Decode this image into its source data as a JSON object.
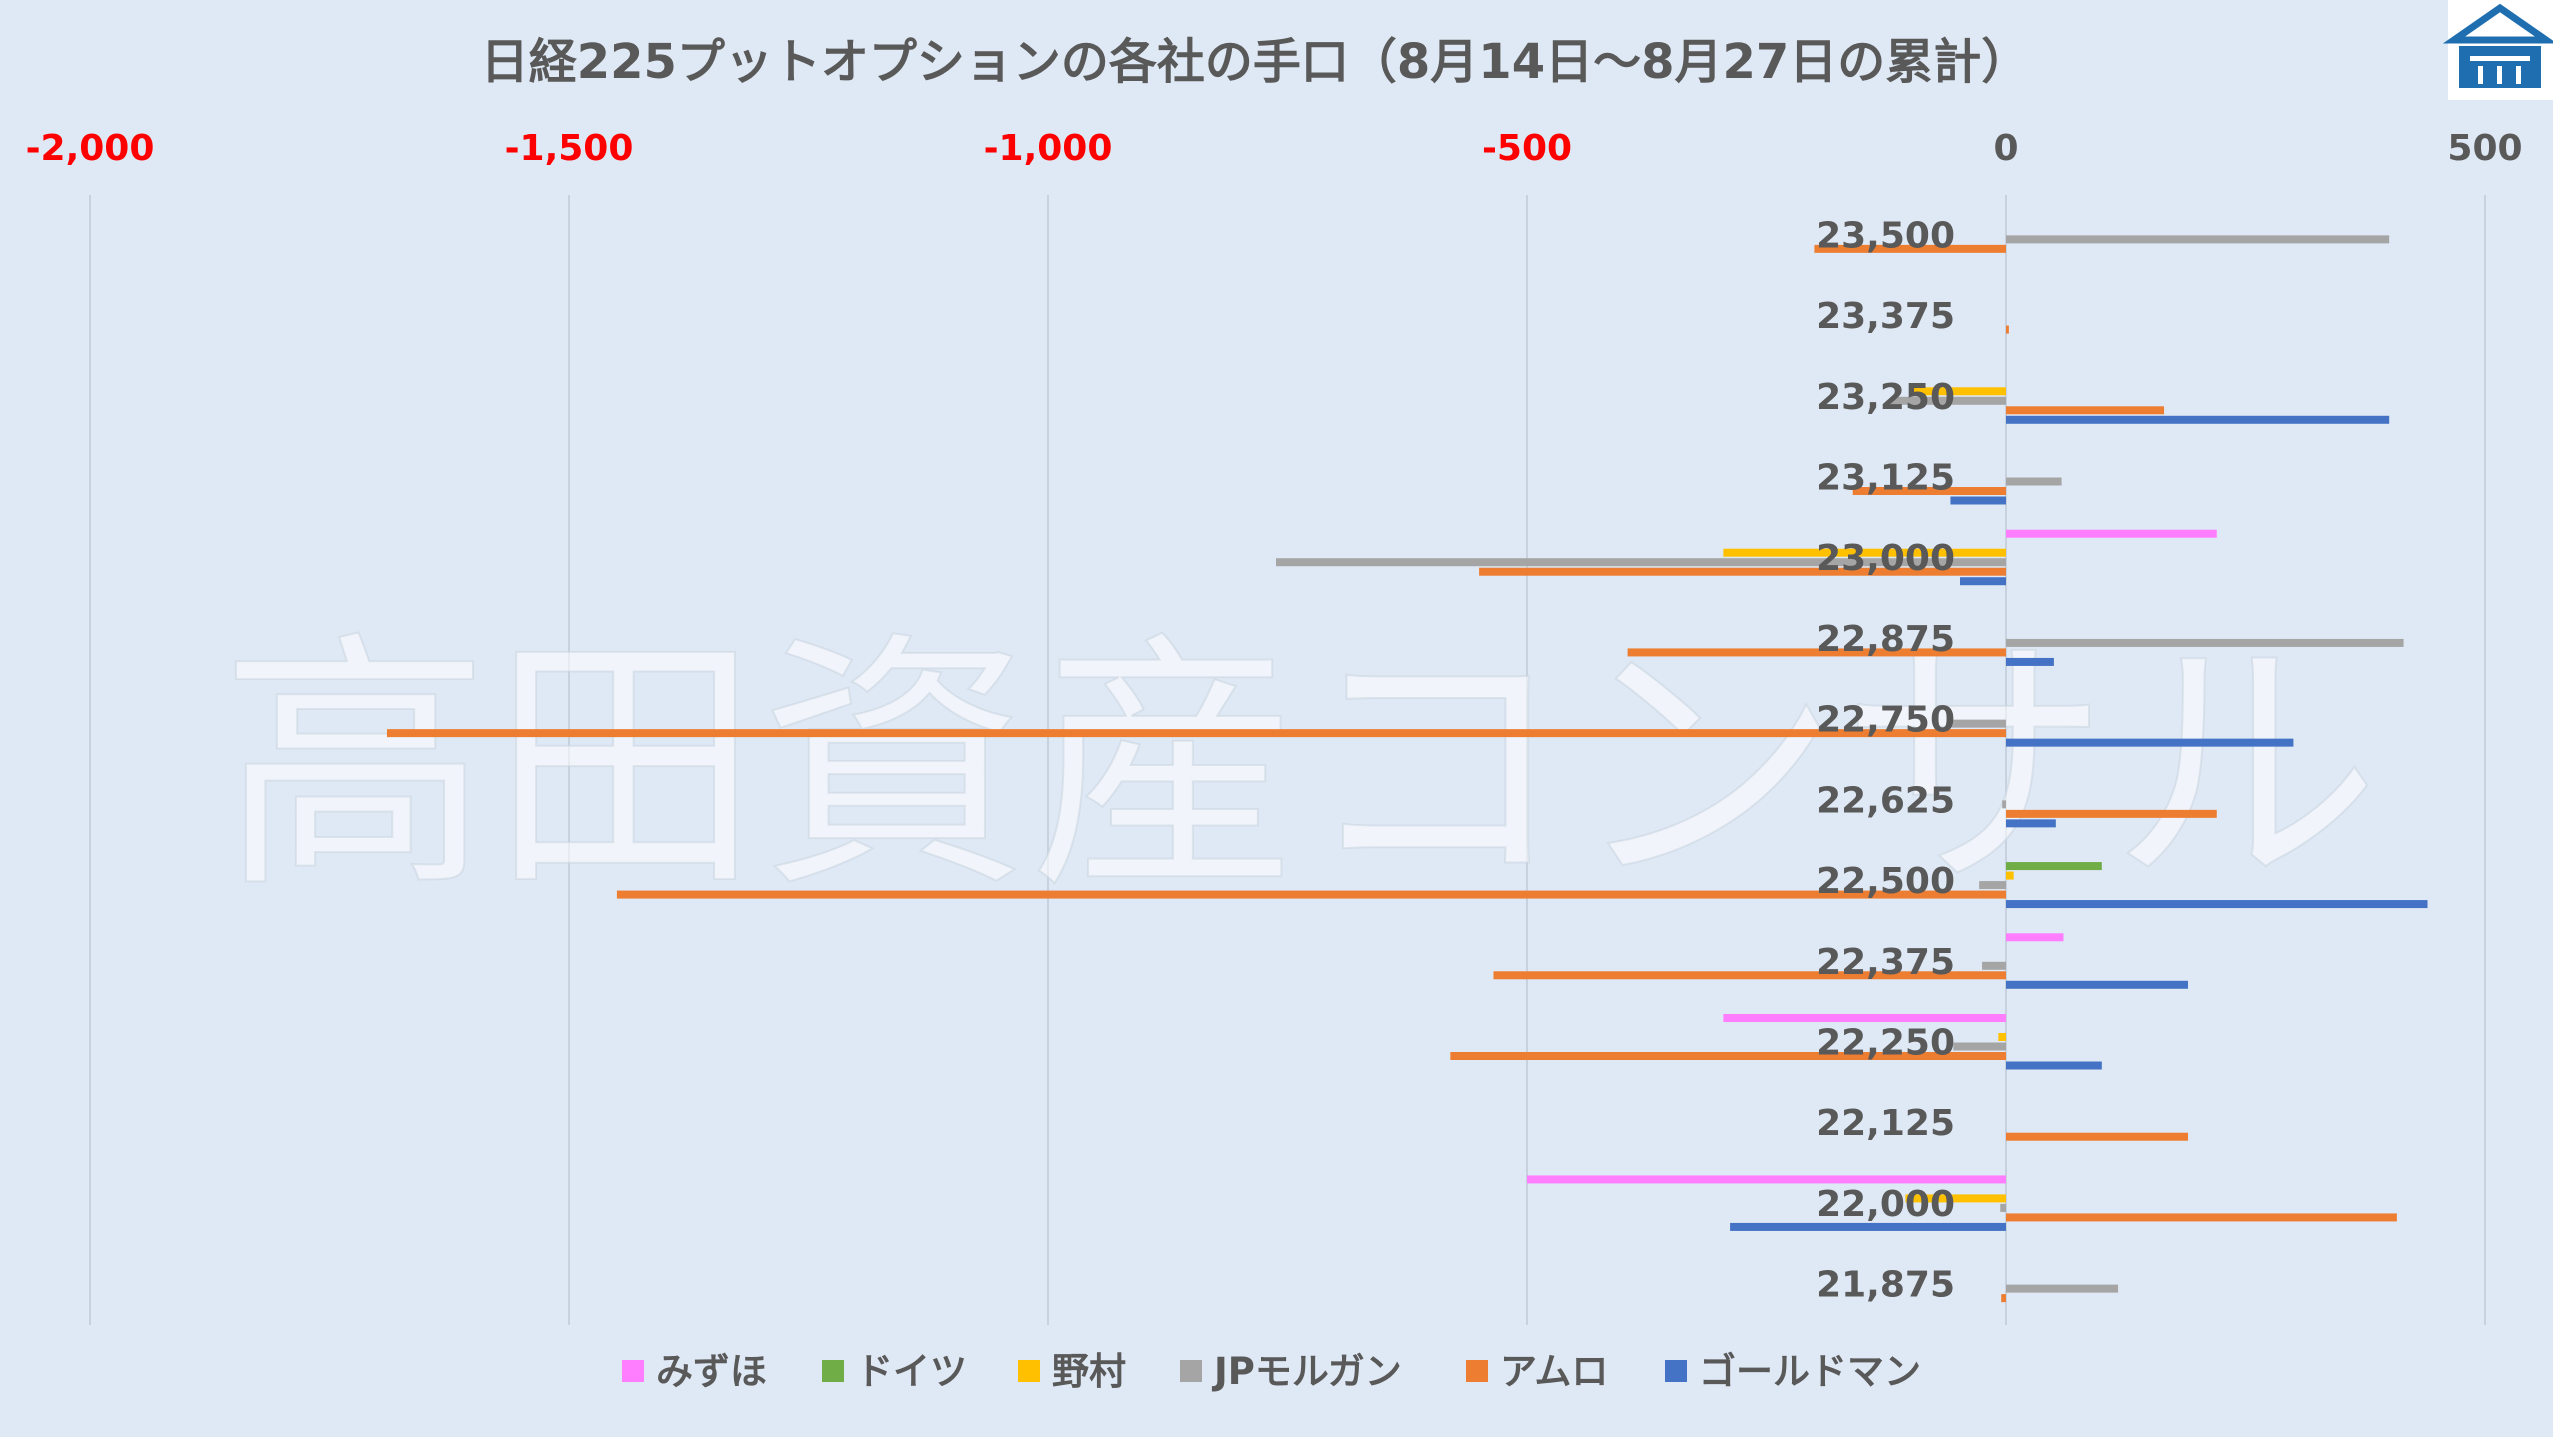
{
  "chart_data": {
    "type": "bar",
    "orientation": "horizontal",
    "title": "日経225プットオプションの各社の手口（8月14日～8月27日の累計）",
    "watermark": "高田資産コンサル",
    "xlim": [
      -2000,
      500
    ],
    "xticks": [
      {
        "value": -2000,
        "label": "-2,000"
      },
      {
        "value": -1500,
        "label": "-1,500"
      },
      {
        "value": -1000,
        "label": "-1,000"
      },
      {
        "value": -500,
        "label": "-500"
      },
      {
        "value": 0,
        "label": "0"
      },
      {
        "value": 500,
        "label": "500"
      }
    ],
    "negative_tick_color": "#ff0000",
    "positive_tick_color": "#595959",
    "grid": true,
    "legend_position": "bottom",
    "categories": [
      "23,500",
      "23,375",
      "23,250",
      "23,125",
      "23,000",
      "22,875",
      "22,750",
      "22,625",
      "22,500",
      "22,375",
      "22,250",
      "22,125",
      "22,000",
      "21,875"
    ],
    "series": [
      {
        "name": "みずほ",
        "color": "#ff7dff",
        "values": [
          0,
          0,
          0,
          0,
          220,
          0,
          0,
          0,
          0,
          60,
          -295,
          0,
          -500,
          0
        ]
      },
      {
        "name": "ドイツ",
        "color": "#70ad47",
        "values": [
          0,
          0,
          0,
          0,
          0,
          0,
          0,
          0,
          100,
          0,
          0,
          0,
          0,
          0
        ]
      },
      {
        "name": "野村",
        "color": "#ffc000",
        "values": [
          0,
          0,
          -100,
          0,
          -295,
          0,
          0,
          0,
          8,
          0,
          -8,
          0,
          -105,
          0
        ]
      },
      {
        "name": "JPモルガン",
        "color": "#a5a5a5",
        "values": [
          400,
          0,
          -120,
          58,
          -762,
          415,
          -60,
          -4,
          -28,
          -25,
          -55,
          0,
          -6,
          117
        ]
      },
      {
        "name": "アムロ",
        "color": "#ed7d31",
        "values": [
          -200,
          3,
          165,
          -160,
          -550,
          -395,
          -1690,
          220,
          -1450,
          -535,
          -580,
          190,
          408,
          -5
        ]
      },
      {
        "name": "ゴールドマン",
        "color": "#4472c4",
        "values": [
          0,
          0,
          400,
          -58,
          -48,
          50,
          300,
          52,
          440,
          190,
          100,
          0,
          -288,
          0
        ]
      }
    ]
  },
  "logo": {
    "name": "company-logo",
    "color": "#1f6fb0"
  }
}
